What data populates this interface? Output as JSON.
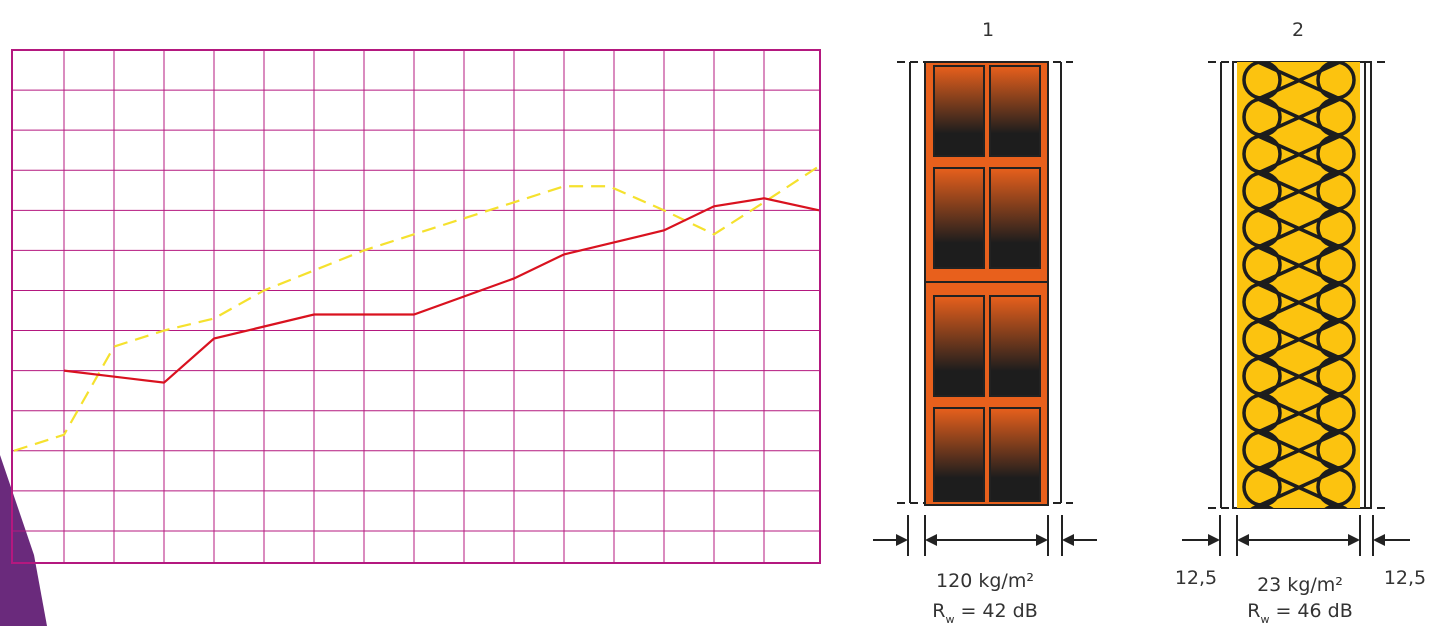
{
  "chart_data": {
    "type": "line",
    "xlim": [
      -1.04,
      15.12
    ],
    "xticks": [
      0,
      1,
      2,
      3,
      4,
      5,
      6,
      7,
      8,
      9,
      10,
      11,
      12,
      13,
      14
    ],
    "ylim": [
      -0.8,
      12
    ],
    "yticks": [
      0,
      1,
      2,
      3,
      4,
      5,
      6,
      7,
      8,
      9,
      10,
      11,
      12
    ],
    "grid": true,
    "grid_color": "#b4187f",
    "series": [
      {
        "color": "#d9121f",
        "style": "solid",
        "x": [
          0,
          2,
          3,
          5,
          7,
          9,
          10,
          12,
          13,
          14,
          15.1
        ],
        "values": [
          4.0,
          3.7,
          4.8,
          5.4,
          5.4,
          6.3,
          6.9,
          7.5,
          8.1,
          8.3,
          8.0
        ]
      },
      {
        "color": "#f5e12e",
        "style": "dashed",
        "x": [
          -1,
          0,
          1,
          2,
          3,
          4,
          5,
          6,
          7,
          8,
          9,
          10,
          10.9,
          12,
          13,
          14,
          15.1
        ],
        "values": [
          2.0,
          2.4,
          4.6,
          5.0,
          5.3,
          6.0,
          6.5,
          7.0,
          7.4,
          7.8,
          8.2,
          8.6,
          8.6,
          8.0,
          7.4,
          8.2,
          9.1
        ]
      }
    ]
  },
  "walls": [
    {
      "number": "1",
      "mass": "120 kg/m²",
      "rw": {
        "symbol": "R",
        "subscript": "w",
        "text": "= 42 dB"
      }
    },
    {
      "number": "2",
      "left_thickness": "12,5",
      "mass": "23 kg/m²",
      "rw": {
        "symbol": "R",
        "subscript": "w",
        "text": "= 46 dB"
      },
      "right_thickness": "12,5"
    }
  ]
}
